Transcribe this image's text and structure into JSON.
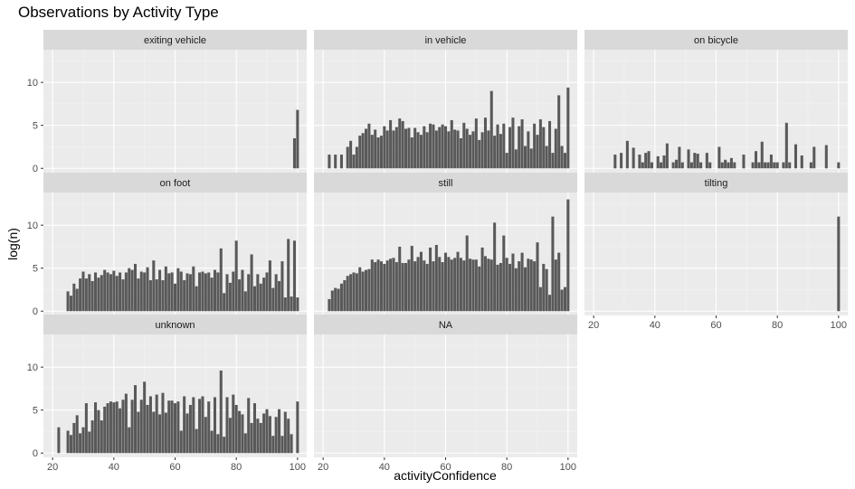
{
  "chart_data": {
    "type": "bar",
    "title": "Observations by Activity Type",
    "xlabel": "activityConfidence",
    "ylabel": "log(n)",
    "xlim": [
      17,
      103
    ],
    "ylim": [
      -0.5,
      13.8
    ],
    "x_ticks": [
      20,
      40,
      60,
      80,
      100
    ],
    "y_ticks": [
      0,
      5,
      10
    ],
    "grid": true,
    "bar_color": "#595959",
    "panel_bg": "#ebebeb",
    "strip_bg": "#d9d9d9",
    "panels": [
      {
        "name": "exiting vehicle",
        "x": [
          99,
          100
        ],
        "values": [
          3.5,
          6.8
        ]
      },
      {
        "name": "in vehicle",
        "x": [
          22,
          24,
          26,
          28,
          29,
          30,
          31,
          32,
          33,
          34,
          35,
          36,
          37,
          38,
          39,
          40,
          41,
          42,
          43,
          44,
          45,
          46,
          47,
          48,
          49,
          50,
          51,
          52,
          53,
          54,
          55,
          56,
          57,
          58,
          59,
          60,
          61,
          62,
          63,
          64,
          65,
          66,
          67,
          68,
          69,
          70,
          71,
          72,
          73,
          74,
          75,
          76,
          77,
          78,
          79,
          80,
          81,
          82,
          83,
          84,
          85,
          86,
          87,
          88,
          89,
          90,
          91,
          92,
          93,
          94,
          95,
          96,
          97,
          98,
          99,
          100
        ],
        "values": [
          1.6,
          1.6,
          1.6,
          2.5,
          3.2,
          1.6,
          2.5,
          3.8,
          4.1,
          4.6,
          5.2,
          3.9,
          4.5,
          3.6,
          3.8,
          4.9,
          4.4,
          5.6,
          4.4,
          4.8,
          5.8,
          5.5,
          4.6,
          4.7,
          3.6,
          4.7,
          4.2,
          3.9,
          4.9,
          4.2,
          5.2,
          5.1,
          4.4,
          4.8,
          5.1,
          4.9,
          4.3,
          5.6,
          4.5,
          4.4,
          3.5,
          5.3,
          4.6,
          3.9,
          4.3,
          5.8,
          3.3,
          4.2,
          5.9,
          4.4,
          9.0,
          3.8,
          5.1,
          4.0,
          5.2,
          1.8,
          4.8,
          5.9,
          2.2,
          4.9,
          5.7,
          2.6,
          4.3,
          2.3,
          5.2,
          3.9,
          5.7,
          4.8,
          2.6,
          5.5,
          1.8,
          4.6,
          8.5,
          2.6,
          1.8,
          9.4
        ]
      },
      {
        "name": "on bicycle",
        "x": [
          27,
          29,
          31,
          33,
          35,
          36,
          37,
          38,
          39,
          41,
          42,
          43,
          44,
          46,
          47,
          48,
          49,
          51,
          52,
          53,
          54,
          55,
          57,
          58,
          61,
          62,
          63,
          64,
          65,
          66,
          69,
          72,
          73,
          74,
          75,
          76,
          77,
          78,
          79,
          80,
          82,
          83,
          84,
          86,
          88,
          91,
          92,
          96,
          100
        ],
        "values": [
          1.6,
          1.8,
          3.2,
          2.4,
          1.6,
          0.7,
          1.8,
          2.0,
          0.7,
          1.4,
          0.7,
          1.5,
          2.9,
          0.7,
          1.0,
          2.5,
          0.7,
          2.2,
          0.7,
          1.8,
          1.7,
          0.7,
          1.8,
          0.7,
          2.5,
          0.7,
          1.0,
          0.7,
          1.2,
          0.7,
          1.6,
          0.7,
          2.0,
          0.7,
          3.1,
          0.7,
          0.7,
          1.6,
          0.7,
          0.7,
          0.7,
          5.3,
          0.7,
          2.8,
          1.5,
          0.7,
          2.5,
          2.7,
          0.7
        ]
      },
      {
        "name": "on foot",
        "x": [
          25,
          26,
          27,
          28,
          29,
          30,
          31,
          32,
          33,
          34,
          35,
          36,
          37,
          38,
          39,
          40,
          41,
          42,
          43,
          44,
          45,
          46,
          47,
          48,
          49,
          50,
          51,
          52,
          53,
          54,
          55,
          56,
          57,
          58,
          59,
          60,
          61,
          62,
          63,
          64,
          65,
          66,
          67,
          68,
          69,
          70,
          71,
          72,
          73,
          74,
          75,
          76,
          77,
          78,
          79,
          80,
          81,
          82,
          83,
          84,
          85,
          86,
          87,
          88,
          89,
          90,
          91,
          92,
          93,
          94,
          95,
          96,
          97,
          98,
          99,
          100
        ],
        "values": [
          2.3,
          1.8,
          3.2,
          2.6,
          3.8,
          4.6,
          3.8,
          4.3,
          3.5,
          4.5,
          3.9,
          4.2,
          4.8,
          4.5,
          4.3,
          4.7,
          4.1,
          4.5,
          3.7,
          4.5,
          5.0,
          4.8,
          5.5,
          3.8,
          4.6,
          4.5,
          5.1,
          3.6,
          5.9,
          3.7,
          4.8,
          3.6,
          5.2,
          4.4,
          4.5,
          3.2,
          5.0,
          4.6,
          3.6,
          4.4,
          4.3,
          5.2,
          2.9,
          4.5,
          4.6,
          4.4,
          4.5,
          3.9,
          4.8,
          4.5,
          7.3,
          2.1,
          4.3,
          3.3,
          4.6,
          8.2,
          3.7,
          4.8,
          2.3,
          4.3,
          6.6,
          2.9,
          4.3,
          3.2,
          3.9,
          4.5,
          5.9,
          2.7,
          4.3,
          3.5,
          5.8,
          1.6,
          8.4,
          1.7,
          8.2,
          1.6
        ]
      },
      {
        "name": "still",
        "x": [
          22,
          23,
          24,
          25,
          26,
          27,
          28,
          29,
          30,
          31,
          32,
          33,
          34,
          35,
          36,
          37,
          38,
          39,
          40,
          41,
          42,
          43,
          44,
          45,
          46,
          47,
          48,
          49,
          50,
          51,
          52,
          53,
          54,
          55,
          56,
          57,
          58,
          59,
          60,
          61,
          62,
          63,
          64,
          65,
          66,
          67,
          68,
          69,
          70,
          71,
          72,
          73,
          74,
          75,
          76,
          77,
          78,
          79,
          80,
          81,
          82,
          83,
          84,
          85,
          86,
          87,
          88,
          89,
          90,
          91,
          92,
          93,
          94,
          95,
          96,
          97,
          98,
          99,
          100
        ],
        "values": [
          1.4,
          2.4,
          2.7,
          2.6,
          3.2,
          3.6,
          4.1,
          4.3,
          4.5,
          4.4,
          5.1,
          4.6,
          4.8,
          4.9,
          6.0,
          5.7,
          6.0,
          5.8,
          5.5,
          5.9,
          6.1,
          6.2,
          5.7,
          7.5,
          5.6,
          5.6,
          6.0,
          7.6,
          5.8,
          6.3,
          6.9,
          5.9,
          5.5,
          7.4,
          5.8,
          7.7,
          6.3,
          5.7,
          6.8,
          6.3,
          6.0,
          6.2,
          6.9,
          6.2,
          5.9,
          8.8,
          6.1,
          6.0,
          6.0,
          5.2,
          7.4,
          6.4,
          6.1,
          6.0,
          10.3,
          5.4,
          5.6,
          8.8,
          6.2,
          5.5,
          6.7,
          5.0,
          5.8,
          6.8,
          5.1,
          6.1,
          6.0,
          5.8,
          8.0,
          2.8,
          5.5,
          4.9,
          1.9,
          11.0,
          6.0,
          6.8,
          2.5,
          2.8,
          13.0
        ]
      },
      {
        "name": "tilting",
        "x": [
          100
        ],
        "values": [
          11.0
        ]
      },
      {
        "name": "unknown",
        "x": [
          22,
          25,
          26,
          27,
          28,
          29,
          30,
          31,
          32,
          33,
          34,
          35,
          36,
          37,
          38,
          39,
          40,
          41,
          42,
          43,
          44,
          45,
          46,
          47,
          48,
          49,
          50,
          51,
          52,
          53,
          54,
          55,
          56,
          57,
          58,
          59,
          60,
          61,
          62,
          63,
          64,
          65,
          66,
          67,
          68,
          69,
          70,
          71,
          72,
          73,
          74,
          75,
          76,
          77,
          78,
          79,
          80,
          81,
          82,
          83,
          84,
          85,
          86,
          87,
          88,
          89,
          90,
          91,
          92,
          93,
          94,
          95,
          96,
          97,
          98,
          100
        ],
        "values": [
          3.0,
          2.6,
          2.1,
          3.5,
          4.4,
          2.3,
          3.0,
          5.8,
          2.5,
          3.8,
          5.9,
          5.0,
          3.8,
          5.4,
          5.8,
          6.0,
          5.9,
          6.0,
          5.2,
          6.2,
          6.9,
          3.0,
          6.2,
          7.9,
          4.8,
          6.2,
          8.3,
          5.6,
          6.6,
          4.8,
          6.8,
          4.5,
          7.0,
          4.7,
          6.1,
          6.1,
          5.8,
          6.0,
          2.6,
          6.6,
          4.6,
          5.6,
          6.5,
          2.8,
          6.3,
          6.6,
          4.2,
          6.0,
          2.6,
          6.5,
          2.2,
          9.6,
          1.9,
          6.5,
          4.1,
          6.8,
          5.6,
          4.9,
          4.5,
          2.3,
          6.4,
          3.5,
          5.8,
          4.0,
          3.5,
          4.6,
          5.1,
          4.3,
          2.0,
          4.2,
          5.1,
          2.0,
          4.8,
          4.0,
          2.2,
          6.0
        ]
      },
      {
        "name": "NA",
        "x": [],
        "values": []
      }
    ]
  }
}
